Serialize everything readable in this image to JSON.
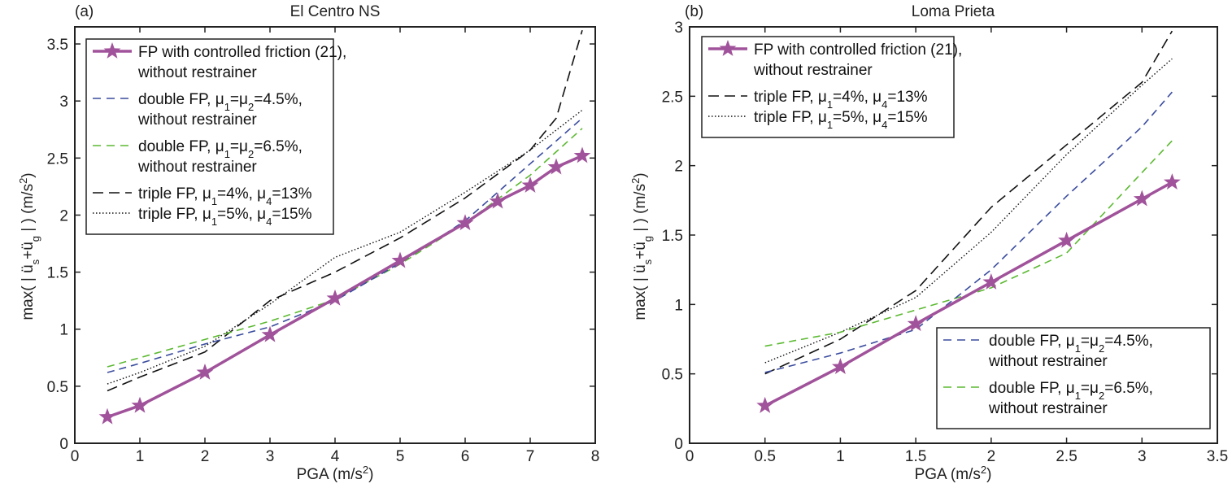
{
  "colors": {
    "fp_controlled": "#a0529a",
    "double_45": "#3a4c9e",
    "double_65": "#5cb932",
    "triple_4_13": "#111111",
    "triple_5_15": "#111111",
    "axis": "#222222"
  },
  "chart_data": [
    {
      "type": "line",
      "panel_label": "(a)",
      "title": "El Centro NS",
      "xlabel": "PGA (m/s²)",
      "xlabel_main": "PGA (m/s",
      "xlabel_sup": "2",
      "xlabel_end": ")",
      "ylabel": "max( | ü_s+ü_g | ) (m/s²)",
      "xlim": [
        0,
        8
      ],
      "ylim": [
        0,
        3.65
      ],
      "xticks": [
        0,
        1,
        2,
        3,
        4,
        5,
        6,
        7,
        8
      ],
      "xtick_labels": [
        "0",
        "1",
        "2",
        "3",
        "4",
        "5",
        "6",
        "7",
        "8"
      ],
      "yticks": [
        0,
        0.5,
        1,
        1.5,
        2,
        2.5,
        3,
        3.5
      ],
      "ytick_labels": [
        "0",
        "0.5",
        "1",
        "1.5",
        "2",
        "2.5",
        "3",
        "3.5"
      ],
      "grid": false,
      "legend_placement": "top-left",
      "legend_order": [
        "fp_controlled",
        "double_45",
        "double_65",
        "triple_4_13",
        "triple_5_15"
      ],
      "series": [
        {
          "key": "fp_controlled",
          "name": "FP with controlled friction (21), without restrainer",
          "legend_lines": [
            "FP with controlled friction (21),",
            "without restrainer"
          ],
          "style": "solid-star",
          "x": [
            0.5,
            1,
            2,
            3,
            4,
            5,
            6,
            6.5,
            7,
            7.4,
            7.8
          ],
          "y": [
            0.23,
            0.33,
            0.62,
            0.95,
            1.27,
            1.6,
            1.93,
            2.12,
            2.26,
            2.42,
            2.52
          ]
        },
        {
          "key": "double_45",
          "name": "double FP, μ1=μ2=4.5%, without restrainer",
          "legend_lines": [
            "double FP, μ1=μ2=4.5%,",
            "without restrainer"
          ],
          "style": "dashed",
          "x": [
            0.5,
            1,
            2,
            3,
            4,
            5,
            6,
            7,
            7.8
          ],
          "y": [
            0.62,
            0.7,
            0.87,
            1.02,
            1.25,
            1.58,
            1.95,
            2.45,
            2.85
          ]
        },
        {
          "key": "double_65",
          "name": "double FP, μ1=μ2=6.5%, without restrainer",
          "legend_lines": [
            "double FP, μ1=μ2=6.5%,",
            "without restrainer"
          ],
          "style": "dashed",
          "x": [
            0.5,
            1,
            2,
            3,
            4,
            5,
            6,
            7,
            7.8
          ],
          "y": [
            0.67,
            0.75,
            0.91,
            1.07,
            1.26,
            1.57,
            1.93,
            2.35,
            2.76
          ]
        },
        {
          "key": "triple_4_13",
          "name": "triple FP, μ1=4%, μ4=13%",
          "legend_lines": [
            "triple FP, μ1=4%, μ4=13%"
          ],
          "style": "long-dashed",
          "x": [
            0.5,
            1,
            2,
            3,
            4,
            5,
            6,
            7,
            7.4,
            7.8
          ],
          "y": [
            0.46,
            0.58,
            0.8,
            1.25,
            1.5,
            1.8,
            2.15,
            2.57,
            2.85,
            3.62
          ]
        },
        {
          "key": "triple_5_15",
          "name": "triple FP, μ1=5%, μ4=15%",
          "legend_lines": [
            "triple FP, μ1=5%, μ4=15%"
          ],
          "style": "dotted",
          "x": [
            0.5,
            1,
            2,
            3,
            4,
            5,
            6,
            7,
            7.8
          ],
          "y": [
            0.52,
            0.62,
            0.85,
            1.22,
            1.63,
            1.85,
            2.2,
            2.57,
            2.92
          ]
        }
      ]
    },
    {
      "type": "line",
      "panel_label": "(b)",
      "title": "Loma Prieta",
      "xlabel": "PGA (m/s²)",
      "xlabel_main": "PGA (m/s",
      "xlabel_sup": "2",
      "xlabel_end": ")",
      "ylabel": "max( | ü_s+ü_g | ) (m/s²)",
      "xlim": [
        0,
        3.5
      ],
      "ylim": [
        0,
        3
      ],
      "xticks": [
        0,
        0.5,
        1,
        1.5,
        2,
        2.5,
        3,
        3.5
      ],
      "xtick_labels": [
        "0",
        "0.5",
        "1",
        "1.5",
        "2",
        "2.5",
        "3",
        "3.5"
      ],
      "yticks": [
        0,
        0.5,
        1,
        1.5,
        2,
        2.5,
        3
      ],
      "ytick_labels": [
        "0",
        "0.5",
        "1",
        "1.5",
        "2",
        "2.5",
        "3"
      ],
      "grid": false,
      "legend_placement": "top-left and bottom-right",
      "legend_groups": [
        {
          "placement": "top-left",
          "keys": [
            "fp_controlled",
            "triple_4_13",
            "triple_5_15"
          ]
        },
        {
          "placement": "bottom-right",
          "keys": [
            "double_45",
            "double_65"
          ]
        }
      ],
      "series": [
        {
          "key": "fp_controlled",
          "name": "FP with controlled friction (21), without restrainer",
          "legend_lines": [
            "FP with controlled friction (21),",
            "without restrainer"
          ],
          "style": "solid-star",
          "x": [
            0.5,
            1,
            1.5,
            2,
            2.5,
            3,
            3.2
          ],
          "y": [
            0.27,
            0.55,
            0.86,
            1.16,
            1.46,
            1.76,
            1.88
          ]
        },
        {
          "key": "double_45",
          "name": "double FP, μ1=μ2=4.5%, without restrainer",
          "legend_lines": [
            "double FP, μ1=μ2=4.5%,",
            "without restrainer"
          ],
          "style": "dashed",
          "x": [
            0.5,
            1,
            1.5,
            2,
            2.5,
            3,
            3.2
          ],
          "y": [
            0.51,
            0.65,
            0.82,
            1.25,
            1.78,
            2.28,
            2.53
          ]
        },
        {
          "key": "double_65",
          "name": "double FP, μ1=μ2=6.5%, without restrainer",
          "legend_lines": [
            "double FP, μ1=μ2=6.5%,",
            "without restrainer"
          ],
          "style": "dashed",
          "x": [
            0.5,
            1,
            1.5,
            2,
            2.5,
            3,
            3.2
          ],
          "y": [
            0.7,
            0.8,
            0.96,
            1.12,
            1.37,
            1.95,
            2.18
          ]
        },
        {
          "key": "triple_4_13",
          "name": "triple FP, μ1=4%, μ4=13%",
          "legend_lines": [
            "triple FP, μ1=4%, μ4=13%"
          ],
          "style": "long-dashed",
          "x": [
            0.5,
            1,
            1.5,
            2,
            2.5,
            3,
            3.2
          ],
          "y": [
            0.5,
            0.75,
            1.1,
            1.7,
            2.15,
            2.6,
            2.97
          ]
        },
        {
          "key": "triple_5_15",
          "name": "triple FP, μ1=5%, μ4=15%",
          "legend_lines": [
            "triple FP, μ1=5%, μ4=15%"
          ],
          "style": "dotted",
          "x": [
            0.5,
            1,
            1.5,
            2,
            2.5,
            3,
            3.2
          ],
          "y": [
            0.58,
            0.8,
            1.05,
            1.52,
            2.08,
            2.58,
            2.77
          ]
        }
      ]
    }
  ]
}
